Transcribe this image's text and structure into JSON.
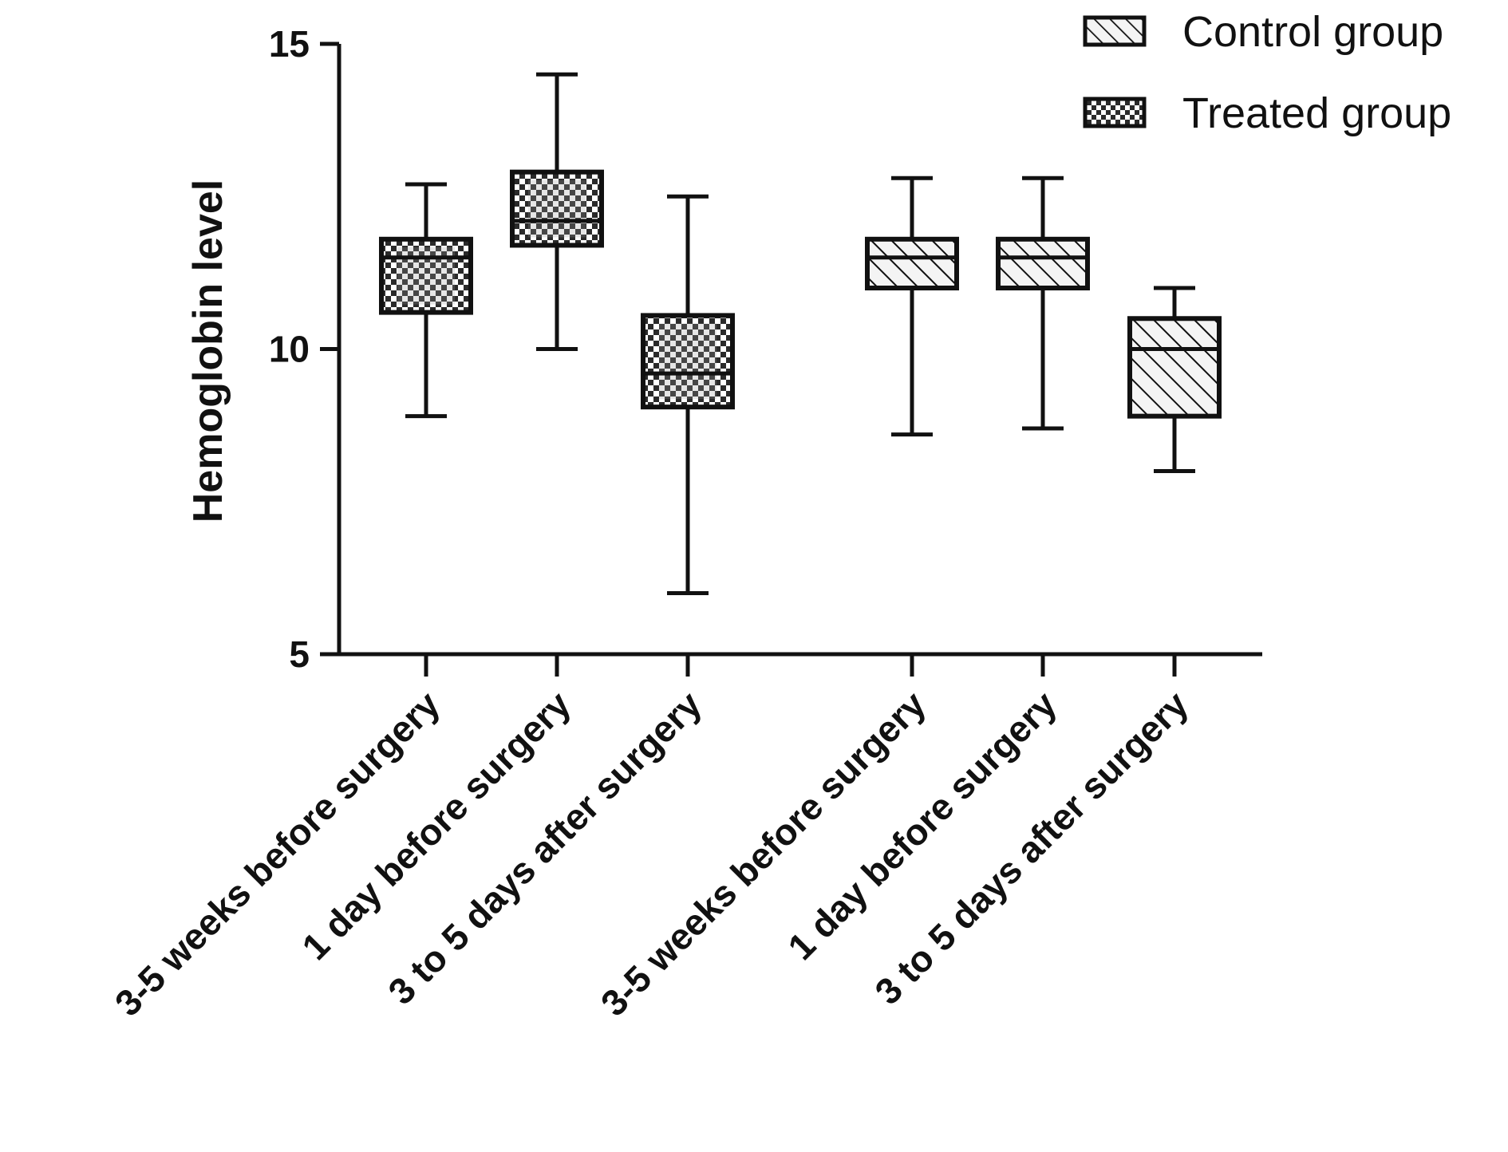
{
  "chart_data": {
    "type": "boxplot",
    "title": "",
    "xlabel": "",
    "ylabel": "Hemoglobin level",
    "ylim": [
      5,
      15
    ],
    "yticks": [
      5,
      10,
      15
    ],
    "grid": false,
    "legend_position": "top-right",
    "legend": [
      {
        "name": "Control group",
        "pattern": "hatch"
      },
      {
        "name": "Treated group",
        "pattern": "checker"
      }
    ],
    "boxes": [
      {
        "category": "3-5 weeks before surgery",
        "group": "Treated group",
        "min": 8.9,
        "q1": 10.6,
        "median": 11.5,
        "q3": 11.8,
        "max": 12.7
      },
      {
        "category": "1 day before surgery",
        "group": "Treated group",
        "min": 10.0,
        "q1": 11.7,
        "median": 12.1,
        "q3": 12.9,
        "max": 14.5
      },
      {
        "category": "3 to 5 days after surgery",
        "group": "Treated group",
        "min": 6.0,
        "q1": 9.05,
        "median": 9.6,
        "q3": 10.55,
        "max": 12.5
      },
      {
        "category": "3-5 weeks before surgery",
        "group": "Control group",
        "min": 8.6,
        "q1": 11.0,
        "median": 11.5,
        "q3": 11.8,
        "max": 12.8
      },
      {
        "category": "1 day before surgery",
        "group": "Control group",
        "min": 8.7,
        "q1": 11.0,
        "median": 11.5,
        "q3": 11.8,
        "max": 12.8
      },
      {
        "category": "3 to 5 days after surgery",
        "group": "Control group",
        "min": 8.0,
        "q1": 8.9,
        "median": 10.0,
        "q3": 10.5,
        "max": 11.0
      }
    ],
    "colors": {
      "ink": "#111111",
      "background": "#ffffff",
      "checker_light": "#d9d9d9",
      "hatch_background": "#f4f4f4"
    }
  }
}
